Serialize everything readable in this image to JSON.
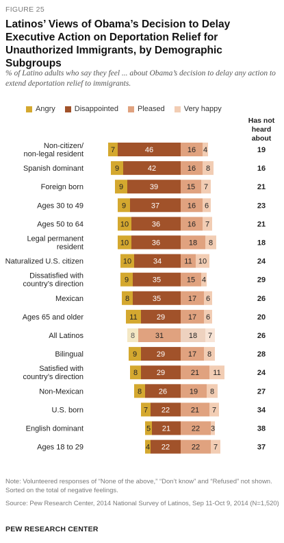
{
  "figure_label": "FIGURE 25",
  "title": "Latinos’ Views of Obama’s Decision to Delay Executive Action on Deportation Relief for Unauthorized Immigrants, by Demographic Subgroups",
  "subtitle": "% of Latino adults who say they feel ... about Obama’s decision to delay any action to extend deportation relief to immigrants.",
  "heard_header": "Has not heard about",
  "note": "Note: Volunteered responses of “None of the above,” “Don’t know” and “Refused” not shown. Sorted on the total of negative feelings.",
  "source": "Source: Pew Research Center, 2014 National Survey of Latinos, Sep 11-Oct 9, 2014 (N=1,520)",
  "org": "PEW RESEARCH CENTER",
  "colors": {
    "angry": "#D4A82F",
    "disappointed": "#A1522A",
    "pleased": "#E0A27F",
    "very_happy": "#F2CDB4",
    "angry_light": "#F4E8C4",
    "disappointed_light": "#E0A27F",
    "pleased_light": "#EED2BF",
    "very_happy_light": "#F8E4D6"
  },
  "chart_data": {
    "type": "bar",
    "orientation": "horizontal",
    "stacking": "diverging",
    "legend_placement": "top",
    "categories": [
      "Non-citizen/ non-legal resident",
      "Spanish dominant",
      "Foreign born",
      "Ages 30 to 49",
      "Ages 50 to 64",
      "Legal permanent resident",
      "Naturalized U.S. citizen",
      "Dissatisfied with country’s direction",
      "Mexican",
      "Ages 65 and older",
      "All Latinos",
      "Bilingual",
      "Satisfied with country’s direction",
      "Non-Mexican",
      "U.S. born",
      "English dominant",
      "Ages 18 to 29"
    ],
    "highlight_category": "All Latinos",
    "series": [
      {
        "name": "Angry",
        "side": "negative",
        "values": [
          7,
          9,
          9,
          9,
          10,
          10,
          10,
          9,
          8,
          11,
          8,
          9,
          8,
          8,
          7,
          5,
          4
        ]
      },
      {
        "name": "Disappointed",
        "side": "negative",
        "values": [
          46,
          42,
          39,
          37,
          36,
          36,
          34,
          35,
          35,
          29,
          31,
          29,
          29,
          26,
          22,
          21,
          22
        ]
      },
      {
        "name": "Pleased",
        "side": "positive",
        "values": [
          16,
          16,
          15,
          16,
          16,
          18,
          11,
          15,
          17,
          17,
          18,
          17,
          21,
          19,
          21,
          22,
          22
        ]
      },
      {
        "name": "Very happy",
        "side": "positive",
        "values": [
          4,
          8,
          7,
          6,
          7,
          8,
          10,
          4,
          6,
          6,
          7,
          8,
          11,
          8,
          7,
          3,
          7
        ]
      }
    ],
    "has_not_heard": [
      19,
      16,
      21,
      23,
      21,
      18,
      24,
      29,
      26,
      20,
      26,
      28,
      24,
      27,
      34,
      38,
      37
    ]
  }
}
